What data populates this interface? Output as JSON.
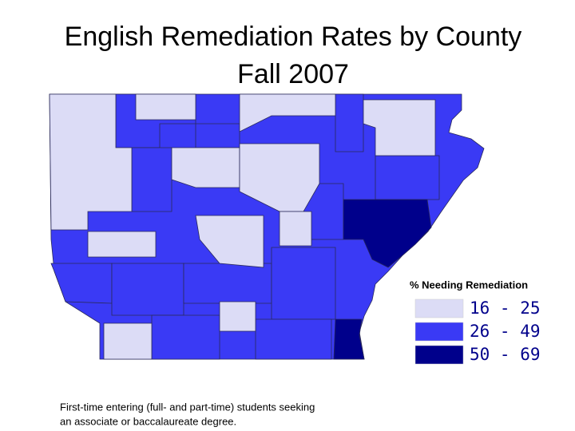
{
  "title": [
    "English Remediation Rates by County",
    "Fall 2007"
  ],
  "legend": {
    "title": "% Needing Remediation",
    "items": [
      {
        "label": "16 - 25",
        "color": "#dcdcf6"
      },
      {
        "label": "26 - 49",
        "color": "#3a3af5"
      },
      {
        "label": "50 - 69",
        "color": "#00008b"
      }
    ]
  },
  "footnote": [
    "First-time entering (full- and part-time) students seeking",
    "an associate or baccalaureate degree."
  ]
}
